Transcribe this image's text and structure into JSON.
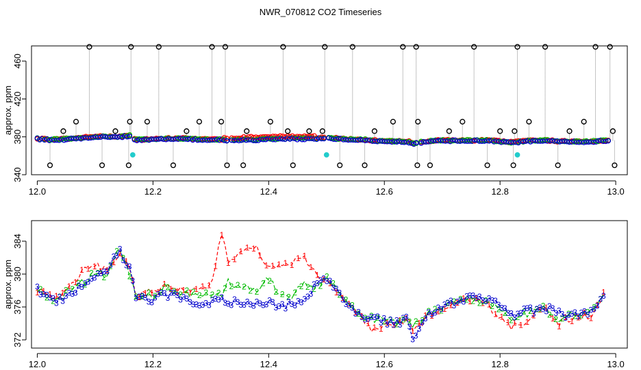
{
  "title": "NWR_070812  CO2 Timeseries",
  "colors": {
    "series1": "#ff0000",
    "series2": "#00bb00",
    "series3": "#0000cc",
    "outlier": "#000000",
    "flag": "#22cccc"
  },
  "chart_data": [
    {
      "type": "scatter",
      "name": "top-panel",
      "ylabel": "approx. ppm",
      "xlim": [
        11.99,
        13.02
      ],
      "ylim": [
        340,
        476
      ],
      "xticks": [
        12.0,
        12.2,
        12.4,
        12.6,
        12.8,
        13.0
      ],
      "xtick_labels": [
        "12.0",
        "12.2",
        "12.4",
        "12.6",
        "12.8",
        "13.0"
      ],
      "yticks": [
        340,
        380,
        420,
        460
      ],
      "ytick_labels": [
        "340",
        "380",
        "420",
        "460"
      ],
      "baseline": {
        "x": [
          12.0,
          12.02,
          12.04,
          12.06,
          12.08,
          12.1,
          12.12,
          12.14,
          12.16,
          12.17,
          12.2,
          12.22,
          12.24,
          12.26,
          12.28,
          12.3,
          12.32,
          12.33,
          12.36,
          12.38,
          12.4,
          12.42,
          12.44,
          12.46,
          12.48,
          12.5,
          12.52,
          12.54,
          12.56,
          12.58,
          12.6,
          12.62,
          12.64,
          12.65,
          12.67,
          12.7,
          12.72,
          12.74,
          12.76,
          12.78,
          12.8,
          12.82,
          12.84,
          12.86,
          12.88,
          12.9,
          12.92,
          12.94,
          12.96,
          12.98,
          12.99
        ],
        "y": [
          378,
          377,
          377,
          378,
          379,
          380,
          380,
          380,
          381,
          377,
          377,
          378,
          378,
          378,
          377,
          377,
          377,
          376,
          377,
          377,
          378,
          378,
          378,
          378,
          378,
          379,
          378,
          377,
          377,
          376,
          375,
          375,
          375,
          373,
          375,
          376,
          376,
          376,
          376,
          376,
          375,
          374,
          375,
          376,
          376,
          375,
          375,
          375,
          375,
          376,
          376
        ]
      },
      "outliers_high": {
        "x": [
          12.09,
          12.162,
          12.21,
          12.302,
          12.325,
          12.425,
          12.497,
          12.545,
          12.632,
          12.655,
          12.755,
          12.83,
          12.878,
          12.965,
          12.99
        ],
        "y": [
          475,
          475,
          475,
          475,
          475,
          475,
          475,
          475,
          475,
          475,
          475,
          475,
          475,
          475,
          475
        ]
      },
      "outliers_low": {
        "x": [
          12.022,
          12.112,
          12.158,
          12.235,
          12.328,
          12.356,
          12.442,
          12.523,
          12.566,
          12.657,
          12.679,
          12.778,
          12.823,
          12.9,
          12.998
        ],
        "y": [
          350,
          350,
          350,
          350,
          350,
          350,
          350,
          350,
          350,
          350,
          350,
          350,
          350,
          350,
          350
        ]
      },
      "outliers_mid": {
        "x": [
          12.045,
          12.067,
          12.135,
          12.16,
          12.19,
          12.258,
          12.28,
          12.318,
          12.362,
          12.403,
          12.433,
          12.47,
          12.493,
          12.583,
          12.615,
          12.658,
          12.712,
          12.735,
          12.8,
          12.825,
          12.85,
          12.92,
          12.945,
          12.995
        ],
        "y": [
          386,
          396,
          386,
          396,
          396,
          386,
          396,
          396,
          386,
          396,
          386,
          386,
          386,
          386,
          396,
          396,
          386,
          396,
          386,
          386,
          396,
          386,
          396,
          386
        ]
      },
      "flagged": {
        "x": [
          12.165,
          12.5,
          12.83
        ],
        "y": [
          361,
          361,
          361
        ]
      }
    },
    {
      "type": "line",
      "name": "bottom-panel",
      "ylabel": "approx. ppm",
      "xlim": [
        11.99,
        13.02
      ],
      "ylim": [
        371,
        386.5
      ],
      "xticks": [
        12.0,
        12.2,
        12.4,
        12.6,
        12.8,
        13.0
      ],
      "xtick_labels": [
        "12.0",
        "12.2",
        "12.4",
        "12.6",
        "12.8",
        "13.0"
      ],
      "yticks": [
        372,
        376,
        380,
        384
      ],
      "ytick_labels": [
        "372",
        "376",
        "380",
        "384"
      ],
      "x": [
        12.0,
        12.02,
        12.04,
        12.06,
        12.08,
        12.1,
        12.12,
        12.14,
        12.16,
        12.17,
        12.2,
        12.22,
        12.24,
        12.26,
        12.28,
        12.3,
        12.32,
        12.33,
        12.36,
        12.38,
        12.4,
        12.42,
        12.44,
        12.46,
        12.48,
        12.5,
        12.52,
        12.54,
        12.56,
        12.58,
        12.6,
        12.62,
        12.64,
        12.65,
        12.67,
        12.7,
        12.72,
        12.74,
        12.76,
        12.78,
        12.8,
        12.82,
        12.84,
        12.86,
        12.88,
        12.9,
        12.92,
        12.94,
        12.96,
        12.98
      ],
      "series": [
        {
          "name": "1",
          "symbol": "1",
          "values": [
            378.2,
            377.2,
            377.5,
            378.8,
            380.5,
            381,
            380.5,
            382.5,
            381,
            377.5,
            377.8,
            378.5,
            378.3,
            378,
            378.2,
            378.6,
            385.2,
            381,
            383,
            383.2,
            380.5,
            381,
            381.5,
            382,
            380,
            379.5,
            377.5,
            376,
            375,
            373,
            373.5,
            374,
            374.5,
            373,
            374.5,
            375.5,
            376.5,
            376.8,
            377,
            376,
            374.5,
            373.5,
            374,
            375.5,
            375.8,
            374,
            374.5,
            374.8,
            375,
            377.5
          ]
        },
        {
          "name": "2",
          "symbol": "2",
          "values": [
            378,
            377,
            377,
            378.5,
            379,
            380,
            380,
            383.5,
            380,
            377.5,
            377.3,
            378.5,
            378,
            377.5,
            377.3,
            377.5,
            377.5,
            379,
            378.5,
            378,
            379.5,
            377.5,
            377,
            379,
            378.5,
            379.5,
            378,
            376,
            375,
            374.5,
            374.5,
            374.2,
            374.5,
            373.5,
            375,
            376,
            376.5,
            377,
            377,
            376.5,
            375.5,
            374.5,
            375,
            375.5,
            375.8,
            374.5,
            375,
            375,
            375.5,
            377.8
          ]
        },
        {
          "name": "3",
          "symbol": "3",
          "values": [
            378.3,
            377,
            376.8,
            378,
            378.5,
            379.5,
            380,
            383,
            380.5,
            377,
            376.8,
            377.5,
            377.5,
            376.8,
            376.5,
            376.5,
            377,
            376.5,
            376.5,
            376.3,
            376.5,
            376.2,
            376.2,
            376.8,
            378.5,
            379.5,
            377.8,
            376,
            374.8,
            374.5,
            374.3,
            374,
            374.8,
            371.8,
            375,
            375.8,
            376.5,
            377,
            377,
            377,
            376,
            375,
            375.5,
            375.5,
            375.8,
            375.2,
            375,
            375.2,
            375.5,
            377.5
          ]
        }
      ]
    }
  ]
}
